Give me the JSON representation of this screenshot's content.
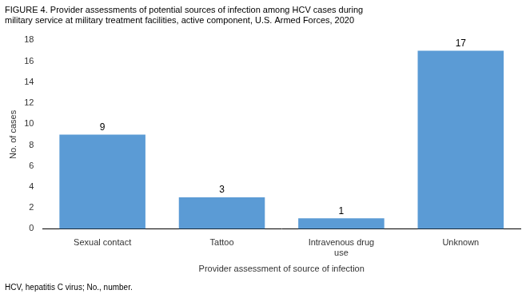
{
  "chart_data": {
    "type": "bar",
    "title": "FIGURE 4. Provider assessments of potential sources of infection among HCV cases during\nmilitary service at military treatment facilities, active component, U.S. Armed Forces, 2020",
    "annotations": [
      "HCV, hepatitis C virus; No., number."
    ],
    "xlabel": "Provider assessment of source of infection",
    "ylabel": "No. of cases",
    "categories": [
      "Sexual contact",
      "Tattoo",
      "Intravenous drug\nuse",
      "Unknown"
    ],
    "values": [
      9,
      3,
      1,
      17
    ],
    "color": "#5b9bd5",
    "ylim": [
      0,
      18
    ],
    "yticks": [
      0,
      2,
      4,
      6,
      8,
      10,
      12,
      14,
      16,
      18
    ],
    "grid": false,
    "data_labels": true
  }
}
